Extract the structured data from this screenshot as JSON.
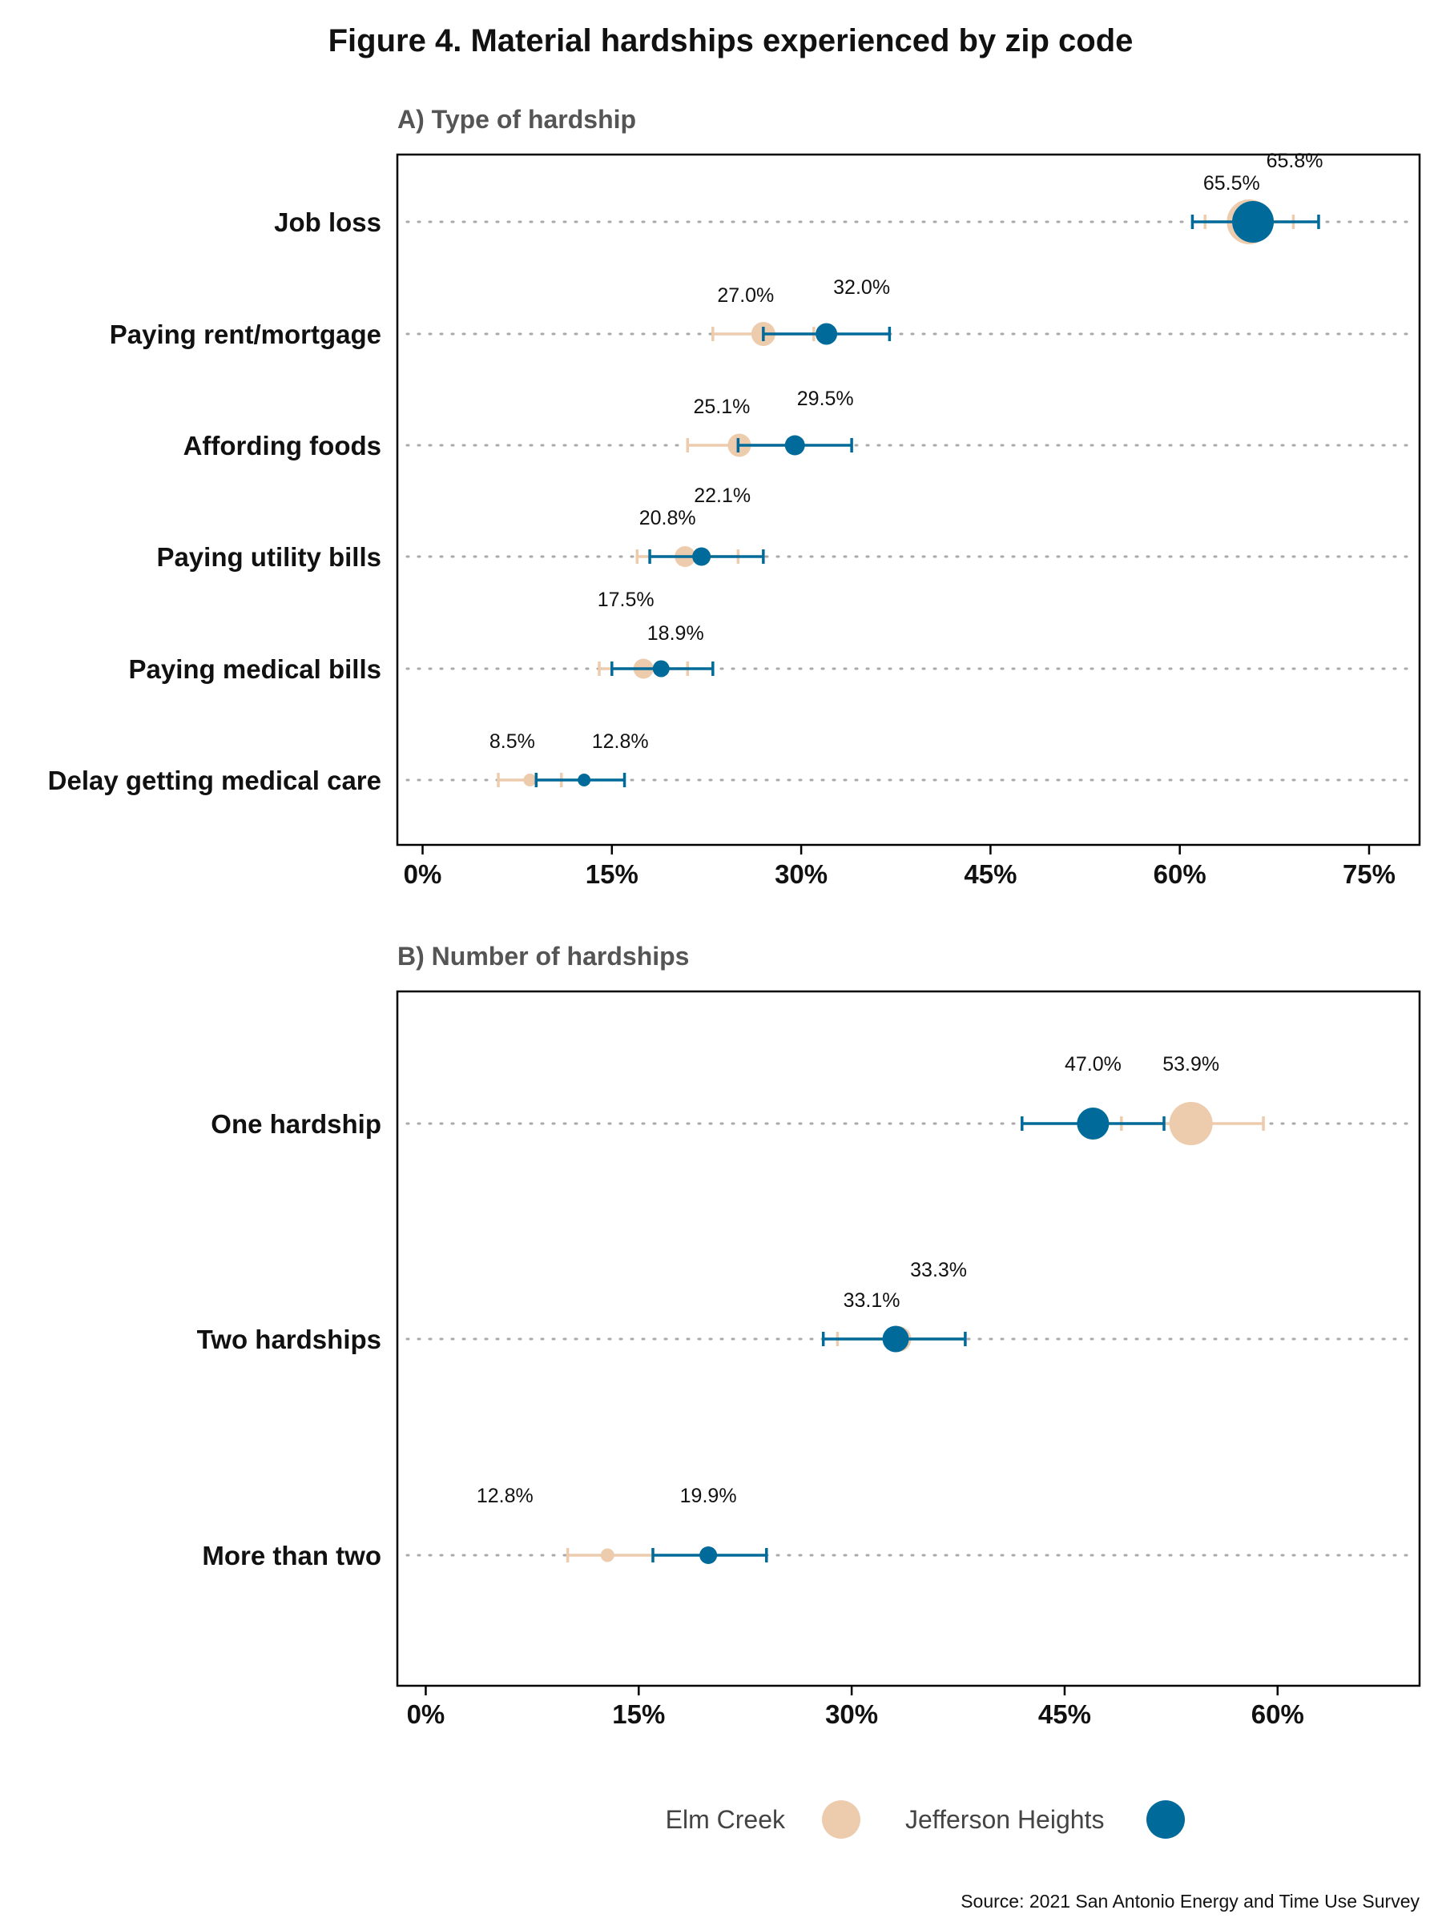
{
  "figure_title": "Figure 4. Material hardships experienced by zip code",
  "source": "Source: 2021 San Antonio Energy and Time Use Survey",
  "colors": {
    "elm_creek": "#EDCBAD",
    "jefferson_heights": "#006B9A",
    "gridline": "#AAAAAA",
    "axis": "#000000"
  },
  "legend": [
    {
      "name": "Elm Creek",
      "color": "#EDCBAD"
    },
    {
      "name": "Jefferson Heights",
      "color": "#006B9A"
    }
  ],
  "chart_data": [
    {
      "type": "dot",
      "title": "A) Type of hardship",
      "xlim": [
        -2,
        79
      ],
      "xticks": [
        0,
        15,
        30,
        45,
        60,
        75
      ],
      "xtick_labels": [
        "0%",
        "15%",
        "30%",
        "45%",
        "60%",
        "75%"
      ],
      "categories": [
        "Job loss",
        "Paying rent/mortgage",
        "Affording foods",
        "Paying utility bills",
        "Paying medical bills",
        "Delay getting medical care"
      ],
      "series": [
        {
          "name": "Elm Creek",
          "values": [
            65.5,
            27.0,
            25.1,
            20.8,
            17.5,
            8.5
          ],
          "labels": [
            "65.5%",
            "27.0%",
            "25.1%",
            "20.8%",
            "17.5%",
            "8.5%"
          ],
          "ci_low": [
            62.0,
            23.0,
            21.0,
            17.0,
            14.0,
            6.0
          ],
          "ci_high": [
            69.0,
            31.0,
            29.0,
            25.0,
            21.0,
            11.0
          ],
          "size": [
            4.4,
            1.8,
            1.7,
            1.4,
            1.3,
            0.4
          ]
        },
        {
          "name": "Jefferson Heights",
          "values": [
            65.8,
            32.0,
            29.5,
            22.1,
            18.9,
            12.8
          ],
          "labels": [
            "65.8%",
            "32.0%",
            "29.5%",
            "22.1%",
            "18.9%",
            "12.8%"
          ],
          "ci_low": [
            61.0,
            27.0,
            25.0,
            18.0,
            15.0,
            9.0
          ],
          "ci_high": [
            71.0,
            37.0,
            34.0,
            27.0,
            23.0,
            16.0
          ],
          "size": [
            4.0,
            1.5,
            1.3,
            1.1,
            0.9,
            0.4
          ]
        }
      ]
    },
    {
      "type": "dot",
      "title": "B) Number of hardships",
      "xlim": [
        -2,
        70
      ],
      "xticks": [
        0,
        15,
        30,
        45,
        60
      ],
      "xtick_labels": [
        "0%",
        "15%",
        "30%",
        "45%",
        "60%"
      ],
      "categories": [
        "One hardship",
        "Two hardships",
        "More than two"
      ],
      "series": [
        {
          "name": "Elm Creek",
          "values": [
            53.9,
            33.3,
            12.8
          ],
          "labels": [
            "53.9%",
            "33.3%",
            "12.8%"
          ],
          "ci_low": [
            49.0,
            29.0,
            10.0
          ],
          "ci_high": [
            59.0,
            38.0,
            16.0
          ],
          "size": [
            4.2,
            2.0,
            0.5
          ]
        },
        {
          "name": "Jefferson Heights",
          "values": [
            47.0,
            33.1,
            19.9
          ],
          "labels": [
            "47.0%",
            "33.1%",
            "19.9%"
          ],
          "ci_low": [
            42.0,
            28.0,
            16.0
          ],
          "ci_high": [
            52.0,
            38.0,
            24.0
          ],
          "size": [
            2.8,
            2.1,
            1.0
          ]
        }
      ]
    }
  ]
}
